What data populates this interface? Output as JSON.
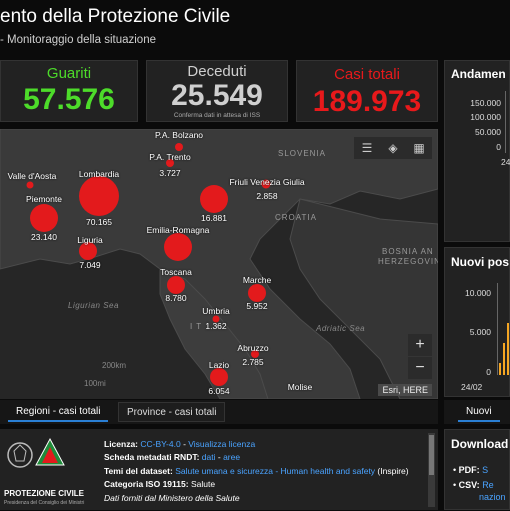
{
  "header": {
    "title": "ento della Protezione Civile",
    "subtitle": "- Monitoraggio della situazione"
  },
  "stats": {
    "guariti": {
      "label": "Guariti",
      "value": "57.576",
      "color": "#4ddc2a"
    },
    "deceduti": {
      "label": "Deceduti",
      "value": "25.549",
      "note": "Conferma dati in attesa di ISS",
      "color": "#cfcfcf"
    },
    "casi": {
      "label": "Casi totali",
      "value": "189.973",
      "color": "#e8191b"
    }
  },
  "map": {
    "country_labels": [
      "SLOVENIA",
      "CROATIA",
      "BOSNIA AN",
      "HERZEGOVIN",
      "I T"
    ],
    "sea_labels": [
      "Ligurian Sea",
      "Adriatic Sea"
    ],
    "scale_label": "200km",
    "scale_label2": "100mi",
    "attribution": "Esri, HERE",
    "zoom_in": "+",
    "zoom_out": "−",
    "regions": [
      {
        "name": "P.A. Bolzano",
        "value": ""
      },
      {
        "name": "P.A. Trento",
        "value": "3.727"
      },
      {
        "name": "Valle d'Aosta",
        "value": ""
      },
      {
        "name": "Lombardia",
        "value": "70.165"
      },
      {
        "name": "Friuli Venezia Giulia",
        "value": "2.858"
      },
      {
        "name": "Piemonte",
        "value": "23.140"
      },
      {
        "name": "Veneto",
        "value": "16.881"
      },
      {
        "name": "Emilia-Romagna",
        "value": ""
      },
      {
        "name": "Liguria",
        "value": "7.049"
      },
      {
        "name": "Toscana",
        "value": "8.780"
      },
      {
        "name": "Marche",
        "value": "5.952"
      },
      {
        "name": "Umbria",
        "value": "1.362"
      },
      {
        "name": "Abruzzo",
        "value": "2.785"
      },
      {
        "name": "Lazio",
        "value": "6.054"
      },
      {
        "name": "Molise",
        "value": ""
      }
    ]
  },
  "tabs": {
    "regioni": "Regioni - casi totali",
    "province": "Province - casi totali"
  },
  "info": {
    "licenza_label": "Licenza:",
    "licenza_value": "CC-BY-4.0",
    "licenza_sep": " - ",
    "licenza_link": "Visualizza licenza",
    "scheda_label": "Scheda metadati RNDT:",
    "scheda_link1": "dati",
    "scheda_sep": " - ",
    "scheda_link2": "aree",
    "temi_label": "Temi del dataset:",
    "temi_link": "Salute umana e sicurezza - Human health and safety",
    "temi_suffix": " (Inspire)",
    "iso_label": "Categoria ISO 19115:",
    "iso_value": "Salute",
    "fonte": "Dati forniti dal Ministero della Salute",
    "logo_text": "PROTEZIONE CIVILE",
    "logo_sub": "Presidenza del Consiglio dei Ministri"
  },
  "side": {
    "andamento_title": "Andamen",
    "andamento_ticks": [
      "150.000",
      "100.000",
      "50.000",
      "0"
    ],
    "andamento_xlabel": "24",
    "nuovi_title": "Nuovi pos",
    "nuovi_ticks": [
      "10.000",
      "5.000",
      "0"
    ],
    "nuovi_xlabel": "24/02",
    "nuovi_tab": "Nuovi",
    "download_title": "Download d",
    "download_pdf_label": "PDF:",
    "download_pdf_link": "S",
    "download_csv_label": "CSV:",
    "download_csv_link": "Re",
    "download_csv_link2": "nazion"
  },
  "colors": {
    "bubble": "#e31a1c",
    "accent": "#2a7fd4",
    "link": "#4aa3ff",
    "chart_line": "#f5a623"
  }
}
